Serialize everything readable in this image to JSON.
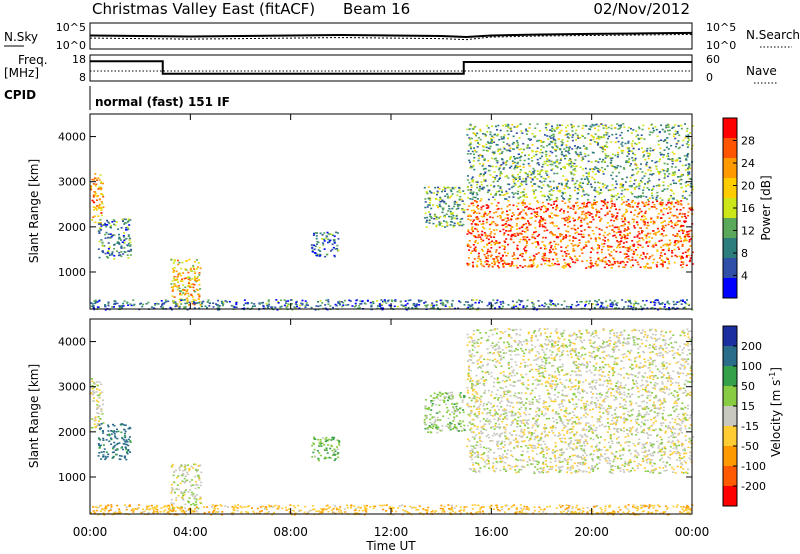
{
  "header": {
    "title": "Christmas Valley East (fitACF)",
    "beam": "Beam 16",
    "date": "02/Nov/2012"
  },
  "panels": {
    "noise": {
      "left_label": "N.Sky",
      "right_label": "N.Search",
      "left_ticks": [
        "10^5",
        "10^0"
      ],
      "right_ticks": [
        "10^5",
        "10^0"
      ]
    },
    "freq": {
      "left_label": "Freq.",
      "left_unit": "[MHz]",
      "right_label": "Nave",
      "left_ticks": [
        "18",
        "8"
      ],
      "right_ticks": [
        "60",
        "0"
      ]
    },
    "cpid": {
      "label": "CPID",
      "text": "normal (fast) 151 IF"
    },
    "power": {
      "ylabel": "Slant Range [km]",
      "cbar_label": "Power [dB]",
      "cbar_ticks": [
        "28",
        "24",
        "20",
        "16",
        "12",
        "8",
        "4"
      ],
      "cbar_colors": [
        "#ff0000",
        "#ff5500",
        "#ff9900",
        "#ffcc00",
        "#cce619",
        "#5aa85a",
        "#2e7d7d",
        "#3050a8",
        "#0000ff"
      ]
    },
    "velocity": {
      "ylabel": "Slant Range [km]",
      "cbar_label": "Velocity [m s^-1]",
      "cbar_ticks": [
        "200",
        "100",
        "50",
        "15",
        "-15",
        "-50",
        "-100",
        "-200"
      ],
      "cbar_colors": [
        "#1c2fa0",
        "#2a6d8a",
        "#35a04a",
        "#88cc44",
        "#c8c8c0",
        "#ffcc33",
        "#ff9900",
        "#ff5a00",
        "#ff0000"
      ]
    }
  },
  "x_axis": {
    "label": "Time UT",
    "ticks": [
      "00:00",
      "04:00",
      "08:00",
      "12:00",
      "16:00",
      "20:00",
      "00:00"
    ]
  },
  "chart_data": [
    {
      "type": "line",
      "name": "noise",
      "x_range": [
        0,
        24
      ],
      "ylim": [
        0,
        5
      ],
      "y_scale": "log",
      "series": [
        {
          "x": [
            0,
            2,
            4,
            6,
            8,
            10,
            12,
            14,
            15,
            16,
            18,
            20,
            22,
            24
          ],
          "values": [
            2.6,
            2.5,
            2.4,
            2.5,
            2.6,
            2.7,
            2.6,
            2.5,
            2.3,
            2.6,
            2.8,
            2.9,
            3.0,
            3.1
          ]
        },
        {
          "x": [
            0,
            2,
            4,
            6,
            8,
            10,
            12,
            14,
            15,
            16,
            18,
            20,
            22,
            24
          ],
          "values": [
            2.1,
            2.0,
            1.9,
            2.0,
            2.1,
            2.2,
            2.1,
            2.0,
            1.8,
            2.3,
            2.5,
            2.6,
            2.7,
            2.8
          ]
        }
      ]
    },
    {
      "type": "line",
      "name": "frequency",
      "x_range": [
        0,
        24
      ],
      "ylim": [
        8,
        18
      ],
      "series": [
        {
          "x": [
            0,
            2.9,
            2.9,
            14.9,
            14.9,
            24
          ],
          "values": [
            15.6,
            15.6,
            10.8,
            10.8,
            15.3,
            15.3
          ]
        }
      ]
    },
    {
      "type": "heatmap",
      "name": "power",
      "x_range": [
        0,
        24
      ],
      "ylim": [
        180,
        4500
      ],
      "y_ticks": [
        1000,
        2000,
        3000,
        4000
      ],
      "color_scale": "Power [dB]",
      "regions": [
        {
          "t": [
            0.0,
            0.5
          ],
          "r": [
            2100,
            3200
          ],
          "value": 22
        },
        {
          "t": [
            0.3,
            1.6
          ],
          "r": [
            1300,
            2200
          ],
          "value": 9
        },
        {
          "t": [
            3.2,
            4.4
          ],
          "r": [
            250,
            1300
          ],
          "value": 20
        },
        {
          "t": [
            8.8,
            9.9
          ],
          "r": [
            1350,
            1900
          ],
          "value": 8
        },
        {
          "t": [
            13.3,
            14.9
          ],
          "r": [
            2000,
            2900
          ],
          "value": 12
        },
        {
          "t": [
            15.0,
            24.0
          ],
          "r": [
            1100,
            2600
          ],
          "value": 26
        },
        {
          "t": [
            15.0,
            24.0
          ],
          "r": [
            2600,
            4300
          ],
          "value": 12
        },
        {
          "t": [
            0.0,
            24.0
          ],
          "r": [
            180,
            400
          ],
          "value": 8
        }
      ]
    },
    {
      "type": "heatmap",
      "name": "velocity",
      "x_range": [
        0,
        24
      ],
      "ylim": [
        180,
        4500
      ],
      "y_ticks": [
        1000,
        2000,
        3000,
        4000
      ],
      "color_scale": "Velocity [m s^-1]",
      "regions": [
        {
          "t": [
            0.0,
            0.5
          ],
          "r": [
            2100,
            3200
          ],
          "value": 0
        },
        {
          "t": [
            0.3,
            1.6
          ],
          "r": [
            1400,
            2200
          ],
          "value": 120
        },
        {
          "t": [
            3.2,
            4.4
          ],
          "r": [
            250,
            1300
          ],
          "value": 0
        },
        {
          "t": [
            8.8,
            9.9
          ],
          "r": [
            1350,
            1900
          ],
          "value": 40
        },
        {
          "t": [
            13.3,
            14.9
          ],
          "r": [
            2000,
            2900
          ],
          "value": 30
        },
        {
          "t": [
            15.0,
            24.0
          ],
          "r": [
            1100,
            2600
          ],
          "value": 0
        },
        {
          "t": [
            15.0,
            24.0
          ],
          "r": [
            2600,
            4300
          ],
          "value": 0
        },
        {
          "t": [
            0.0,
            24.0
          ],
          "r": [
            180,
            400
          ],
          "value": -40
        }
      ]
    }
  ]
}
